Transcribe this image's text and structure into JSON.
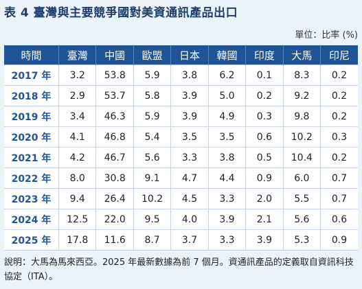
{
  "title": "表 4  臺灣與主要競爭國對美資通訊產品出口",
  "unit": "單位：比率 (%)",
  "table": {
    "headers": [
      "時間",
      "臺灣",
      "中國",
      "歐盟",
      "日本",
      "韓國",
      "印度",
      "大馬",
      "印尼"
    ],
    "rows": [
      [
        "2017 年",
        "3.2",
        "53.8",
        "5.9",
        "3.8",
        "6.2",
        "0.1",
        "8.3",
        "0.2"
      ],
      [
        "2018 年",
        "2.9",
        "53.7",
        "5.8",
        "3.9",
        "5.0",
        "0.2",
        "9.2",
        "0.2"
      ],
      [
        "2019 年",
        "3.4",
        "46.3",
        "5.9",
        "3.9",
        "4.9",
        "0.3",
        "9.8",
        "0.2"
      ],
      [
        "2020 年",
        "4.1",
        "46.8",
        "5.4",
        "3.5",
        "3.5",
        "0.6",
        "10.2",
        "0.3"
      ],
      [
        "2021 年",
        "4.2",
        "46.7",
        "5.6",
        "3.3",
        "3.8",
        "0.5",
        "10.4",
        "0.2"
      ],
      [
        "2022 年",
        "8.0",
        "30.8",
        "9.1",
        "4.7",
        "4.4",
        "0.9",
        "6.0",
        "0.7"
      ],
      [
        "2023 年",
        "9.4",
        "26.4",
        "10.2",
        "4.5",
        "3.3",
        "2.0",
        "5.5",
        "0.7"
      ],
      [
        "2024 年",
        "12.5",
        "22.0",
        "9.5",
        "4.0",
        "3.9",
        "2.1",
        "5.6",
        "0.6"
      ],
      [
        "2025 年",
        "17.8",
        "11.6",
        "8.7",
        "3.7",
        "3.3",
        "3.9",
        "5.3",
        "0.9"
      ]
    ]
  },
  "note": "說明：大馬為馬來西亞。2025 年最新數據為前 7 個月。資通訊產品的定義取自資訊科技協定（ITA）。",
  "colors": {
    "header_bg": "#1f5496",
    "title": "#1e3f6e",
    "page_bg": "#ebf2f8"
  }
}
